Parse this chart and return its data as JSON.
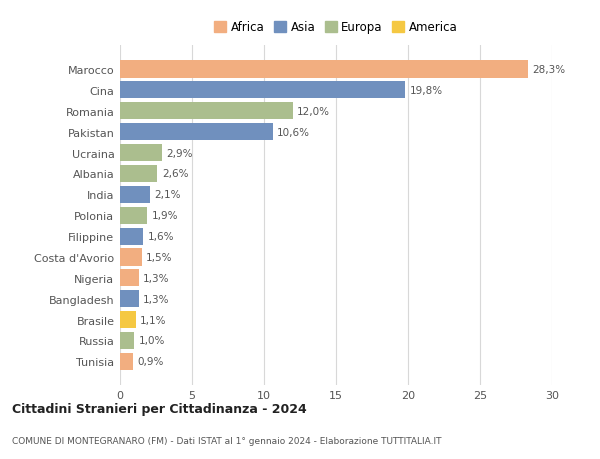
{
  "countries": [
    "Marocco",
    "Cina",
    "Romania",
    "Pakistan",
    "Ucraina",
    "Albania",
    "India",
    "Polonia",
    "Filippine",
    "Costa d'Avorio",
    "Nigeria",
    "Bangladesh",
    "Brasile",
    "Russia",
    "Tunisia"
  ],
  "values": [
    28.3,
    19.8,
    12.0,
    10.6,
    2.9,
    2.6,
    2.1,
    1.9,
    1.6,
    1.5,
    1.3,
    1.3,
    1.1,
    1.0,
    0.9
  ],
  "labels": [
    "28,3%",
    "19,8%",
    "12,0%",
    "10,6%",
    "2,9%",
    "2,6%",
    "2,1%",
    "1,9%",
    "1,6%",
    "1,5%",
    "1,3%",
    "1,3%",
    "1,1%",
    "1,0%",
    "0,9%"
  ],
  "continents": [
    "Africa",
    "Asia",
    "Europa",
    "Asia",
    "Europa",
    "Europa",
    "Asia",
    "Europa",
    "Asia",
    "Africa",
    "Africa",
    "Asia",
    "America",
    "Europa",
    "Africa"
  ],
  "colors": {
    "Africa": "#F2AE80",
    "Asia": "#7090BE",
    "Europa": "#ABBE8E",
    "America": "#F5C842"
  },
  "xlim": [
    0,
    30
  ],
  "xticks": [
    0,
    5,
    10,
    15,
    20,
    25,
    30
  ],
  "title": "Cittadini Stranieri per Cittadinanza - 2024",
  "subtitle": "COMUNE DI MONTEGRANARO (FM) - Dati ISTAT al 1° gennaio 2024 - Elaborazione TUTTITALIA.IT",
  "background_color": "#ffffff",
  "grid_color": "#d8d8d8",
  "legend_order": [
    "Africa",
    "Asia",
    "Europa",
    "America"
  ]
}
